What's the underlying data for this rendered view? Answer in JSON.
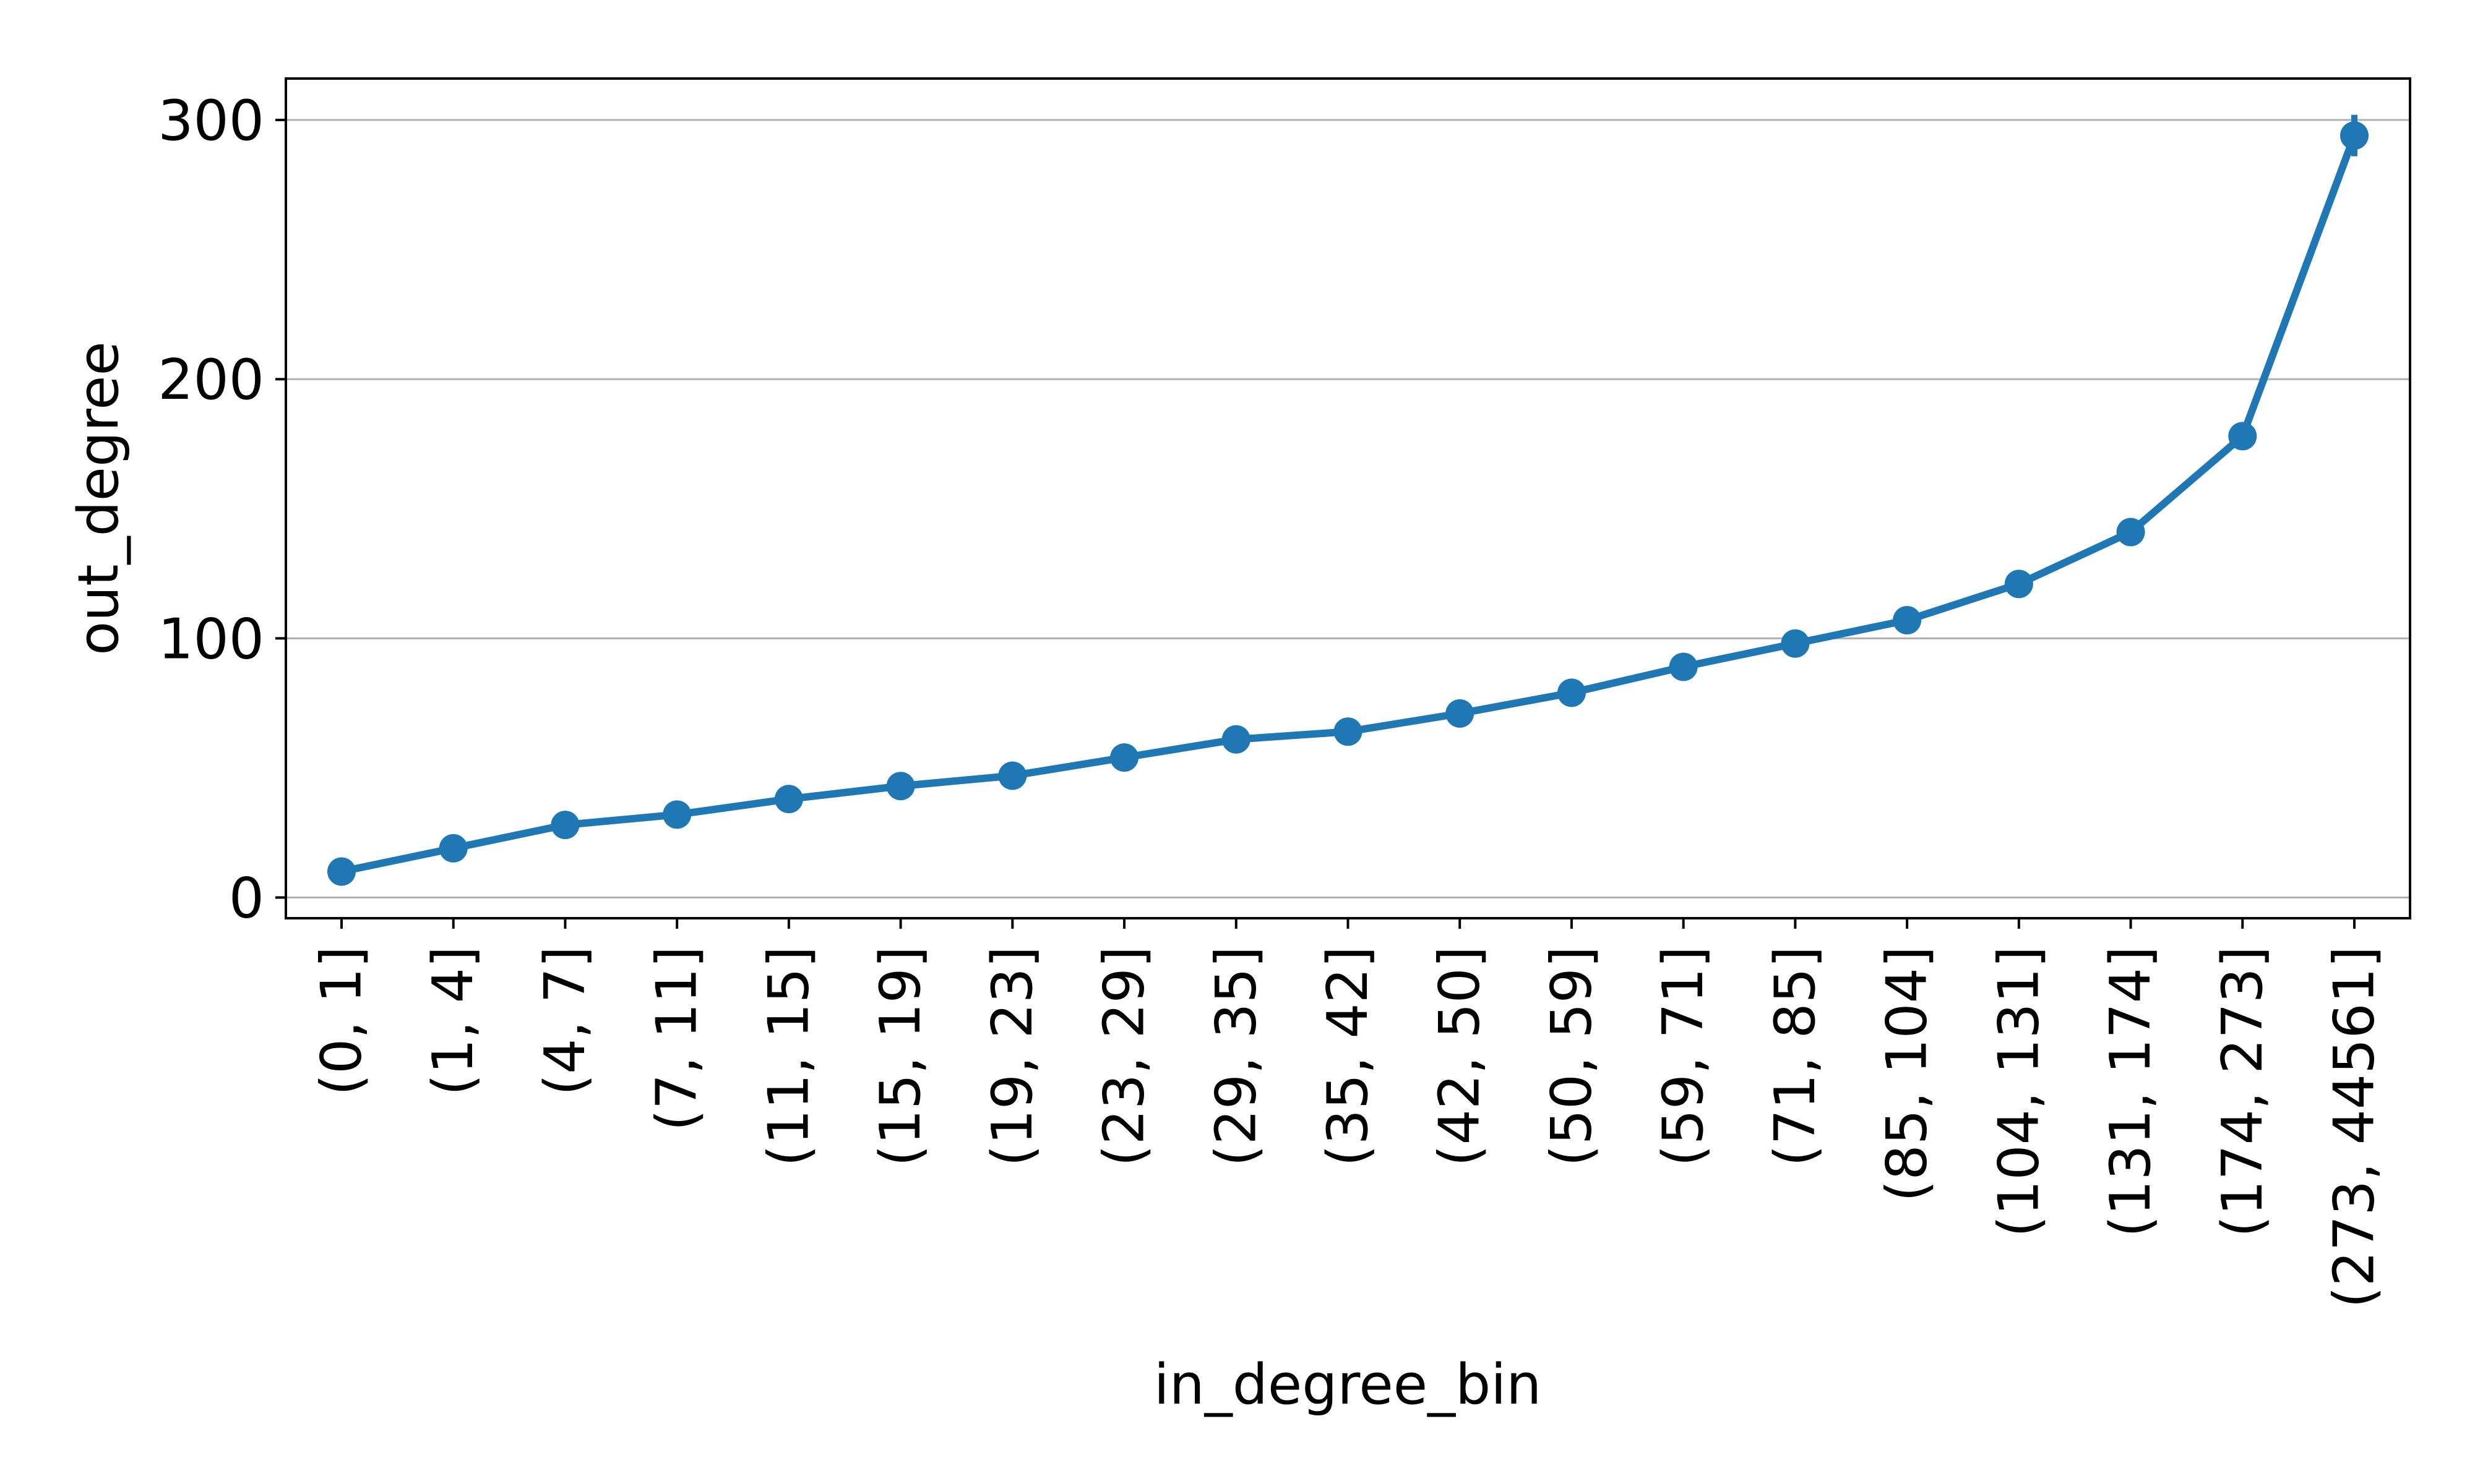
{
  "chart_data": {
    "type": "line",
    "title": "",
    "xlabel": "in_degree_bin",
    "ylabel": "out_degree",
    "categories": [
      "(0, 1]",
      "(1, 4]",
      "(4, 7]",
      "(7, 11]",
      "(11, 15]",
      "(15, 19]",
      "(19, 23]",
      "(23, 29]",
      "(29, 35]",
      "(35, 42]",
      "(42, 50]",
      "(50, 59]",
      "(59, 71]",
      "(71, 85]",
      "(85, 104]",
      "(104, 131]",
      "(131, 174]",
      "(174, 273]",
      "(273, 44561]"
    ],
    "series": [
      {
        "values": [
          10,
          19,
          28,
          32,
          38,
          43,
          47,
          54,
          61,
          64,
          71,
          79,
          89,
          98,
          107,
          121,
          141,
          178,
          294
        ],
        "error": [
          1,
          1,
          1,
          1,
          1,
          1,
          1,
          1,
          1,
          1,
          1,
          1,
          1,
          1,
          1,
          2,
          2,
          3,
          8
        ],
        "color": "#1f77b4"
      }
    ],
    "ylim": [
      -8,
      316
    ],
    "yticks": [
      0,
      100,
      200,
      300
    ],
    "grid": "y",
    "legend": "none"
  }
}
